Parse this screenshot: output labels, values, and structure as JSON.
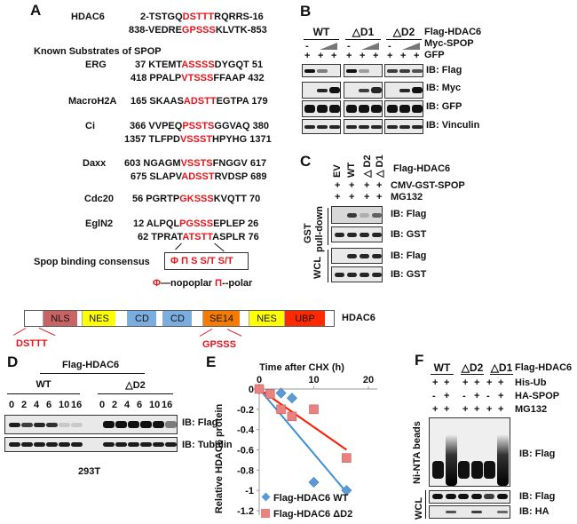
{
  "panelA": {
    "letter": "A",
    "hdac6": {
      "name": "HDAC6",
      "seqs": [
        {
          "pre": "2-TSTGQ",
          "motif": "DSTTT",
          "post": "RQRRS-16"
        },
        {
          "pre": "838-VEDRE",
          "motif": "GPSSS",
          "post": "KLVTK-853"
        }
      ]
    },
    "known_title": "Known Substrates of SPOP",
    "substrates": [
      {
        "name": "ERG",
        "seqs": [
          {
            "pre": "37 KTEMT",
            "motif": "ASSSS",
            "post": "DYGQT 51"
          },
          {
            "pre": "418 PPALP",
            "motif": "VTSSS",
            "post": "FFAAP 432"
          }
        ]
      },
      {
        "name": "MacroH2A",
        "seqs": [
          {
            "pre": "165 SKAAS",
            "motif": "ADSTT",
            "post": "EGTPA 179"
          }
        ]
      },
      {
        "name": "Ci",
        "seqs": [
          {
            "pre": "366 VVPEQ",
            "motif": "PSSTS",
            "post": "GGVAQ 380"
          },
          {
            "pre": "1357 TLFPD",
            "motif": "VSSST",
            "post": "HPYHG 1371"
          }
        ]
      },
      {
        "name": "Daxx",
        "seqs": [
          {
            "pre": "603 NGAGM",
            "motif": "VSSTS",
            "post": "FNGGV 617"
          },
          {
            "pre": "675 SLAPV",
            "motif": "ADSST",
            "post": "RVDSP 689"
          }
        ]
      },
      {
        "name": "Cdc20",
        "seqs": [
          {
            "pre": "56 PGRTP",
            "motif": "GKSSS",
            "post": "KVQTT 70"
          }
        ]
      },
      {
        "name": "EglN2",
        "seqs": [
          {
            "pre": "12 ALPQL",
            "motif": "PGSSS",
            "post": "EPLEP 26"
          },
          {
            "pre": "62 TPRAT",
            "motif": "ATSTT",
            "post": "ASPLR  76"
          }
        ]
      }
    ],
    "consensus_label": "Spop binding consensus",
    "consensus": "Φ Π S S/T S/T",
    "legend_phi": "Φ",
    "legend_phi_text": "—nopoplar",
    "legend_pi": "Π",
    "legend_pi_text": "--polar"
  },
  "panelB": {
    "letter": "B",
    "groups": [
      "WT",
      "△D1",
      "△D2"
    ],
    "row_labels": [
      "Flag-HDAC6",
      "Myc-SPOP",
      "GFP"
    ],
    "minus": "-",
    "plus": "+",
    "blots": [
      "IB: Flag",
      "IB: Myc",
      "IB: GFP",
      "IB: Vinculin"
    ]
  },
  "panelC": {
    "letter": "C",
    "lanes": [
      "EV",
      "WT",
      "△ D2",
      "△ D1"
    ],
    "row_labels": [
      "Flag-HDAC6",
      "CMV-GST-SPOP",
      "MG132"
    ],
    "plus": "+",
    "side": [
      "GST",
      "pull-down",
      "WCL"
    ],
    "blots": [
      "IB: Flag",
      "IB: GST",
      "IB: Flag",
      "IB: GST"
    ]
  },
  "domain": {
    "name": "HDAC6",
    "segments": [
      "NLS",
      "NES",
      "CD",
      "CD",
      "SE14",
      "NES",
      "UBP"
    ],
    "motifs": [
      "DSTTT",
      "GPSSS"
    ],
    "colors": {
      "NLS": "#c96464",
      "NES": "#ffff00",
      "CD": "#7aaee0",
      "SE14": "#f77b00",
      "UBP": "#ff2a00"
    }
  },
  "panelD": {
    "letter": "D",
    "title": "Flag-HDAC6",
    "groups": [
      "WT",
      "△D2"
    ],
    "times": [
      "0",
      "2",
      "4",
      "6",
      "10",
      "16"
    ],
    "blots": [
      "IB: Flag",
      "IB: Tubulin"
    ],
    "cell_line": "293T"
  },
  "panelE": {
    "letter": "E"
  },
  "chart_data": {
    "type": "scatter",
    "title": "Time after CHX (h)",
    "ylabel": "Relative HDAC6 protein",
    "xlim": [
      0,
      20
    ],
    "ylim": [
      -1.2,
      0
    ],
    "xticks": [
      "0",
      "10",
      "20"
    ],
    "yticks": [
      "0",
      "-0.2",
      "-0.4",
      "-0.6",
      "-0.8",
      "-1",
      "-1.2"
    ],
    "legend": "bottom-left",
    "series": [
      {
        "name": "Flag-HDAC6 WT",
        "color": "#5b9bd5",
        "x": [
          0,
          4,
          6,
          10,
          16
        ],
        "y": [
          0,
          -0.04,
          -0.09,
          -0.92,
          -1.0
        ],
        "trend": [
          [
            0,
            0
          ],
          [
            16,
            -1.02
          ]
        ],
        "trend_color": "#3d8fd6"
      },
      {
        "name": "Flag-HDAC6 ΔD2",
        "color": "#e8817f",
        "x": [
          0,
          2,
          4,
          6,
          10,
          16
        ],
        "y": [
          0,
          -0.05,
          -0.2,
          -0.27,
          -0.2,
          -0.68
        ],
        "trend": [
          [
            0,
            0
          ],
          [
            16,
            -0.6
          ]
        ],
        "trend_color": "#ff1a00"
      }
    ]
  },
  "panelF": {
    "letter": "F",
    "groups": [
      "WT",
      "△D2",
      "△D1"
    ],
    "row_labels": [
      "Flag-HDAC6",
      "His-Ub",
      "HA-SPOP",
      "MG132"
    ],
    "plus": "+",
    "minus": "-",
    "side": [
      "Ni-NTA beads",
      "WCL"
    ],
    "blots": [
      "IB: Flag",
      "IB: Flag",
      "IB: HA"
    ]
  }
}
